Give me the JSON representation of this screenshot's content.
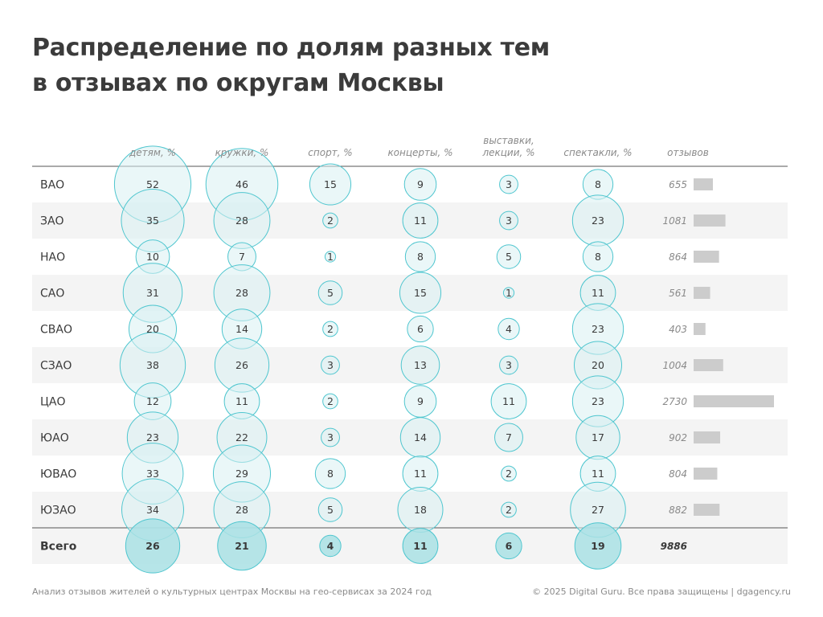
{
  "title_lines": [
    "Распределение по долям разных тем",
    "в отзывах по округам Москвы"
  ],
  "footer": {
    "source": "Анализ отзывов жителей о культурных центрах Москвы на гео-сервисах за 2024 год",
    "copyright": "© 2025 Digital Guru. Все права защищены | dgagency.ru"
  },
  "colors": {
    "bubble_fill": "#d8f1f3",
    "bubble_stroke": "#4fc6cf",
    "total_fill": "#a9e0e4",
    "row_stripe": "#f4f4f4",
    "review_bar": "#cccccc",
    "text": "#3a3a3a",
    "header_text": "#8a8a8a"
  },
  "chart_data": {
    "type": "table",
    "columns": [
      {
        "label_lines": [
          "детям, %"
        ]
      },
      {
        "label_lines": [
          "кружки, %"
        ]
      },
      {
        "label_lines": [
          "спорт, %"
        ]
      },
      {
        "label_lines": [
          "концерты, %"
        ]
      },
      {
        "label_lines": [
          "выставки,",
          "лекции, %"
        ]
      },
      {
        "label_lines": [
          "спектакли, %"
        ]
      }
    ],
    "reviews_label": "отзывов",
    "rows": [
      {
        "name": "ВАО",
        "values": [
          52,
          46,
          15,
          9,
          3,
          8
        ],
        "reviews": 655
      },
      {
        "name": "ЗАО",
        "values": [
          35,
          28,
          2,
          11,
          3,
          23
        ],
        "reviews": 1081
      },
      {
        "name": "НАО",
        "values": [
          10,
          7,
          1,
          8,
          5,
          8
        ],
        "reviews": 864
      },
      {
        "name": "САО",
        "values": [
          31,
          28,
          5,
          15,
          1,
          11
        ],
        "reviews": 561
      },
      {
        "name": "СВАО",
        "values": [
          20,
          14,
          2,
          6,
          4,
          23
        ],
        "reviews": 403
      },
      {
        "name": "СЗАО",
        "values": [
          38,
          26,
          3,
          13,
          3,
          20
        ],
        "reviews": 1004
      },
      {
        "name": "ЦАО",
        "values": [
          12,
          11,
          2,
          9,
          11,
          23
        ],
        "reviews": 2730
      },
      {
        "name": "ЮАО",
        "values": [
          23,
          22,
          3,
          14,
          7,
          17
        ],
        "reviews": 902
      },
      {
        "name": "ЮВАО",
        "values": [
          33,
          29,
          8,
          11,
          2,
          11
        ],
        "reviews": 804
      },
      {
        "name": "ЮЗАО",
        "values": [
          34,
          28,
          5,
          18,
          2,
          27
        ],
        "reviews": 882
      }
    ],
    "total": {
      "name": "Всего",
      "values": [
        26,
        21,
        4,
        11,
        6,
        19
      ],
      "reviews": 9886
    }
  }
}
